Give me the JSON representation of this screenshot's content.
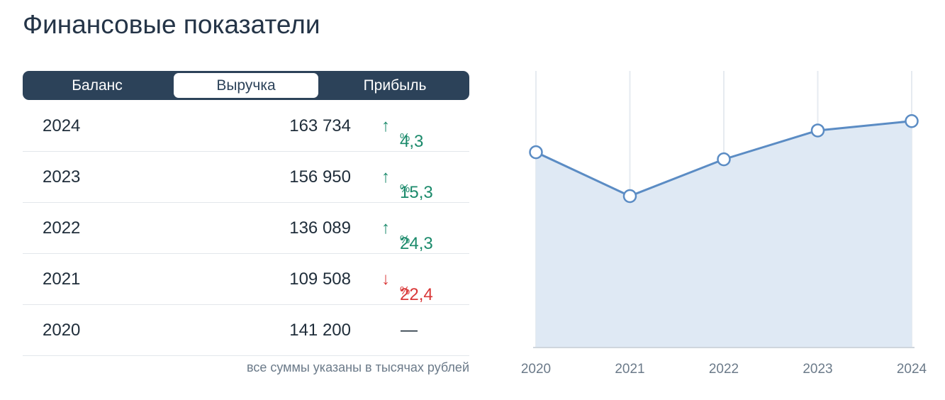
{
  "header": {
    "title": "Финансовые показатели"
  },
  "tabs": {
    "items": [
      "Баланс",
      "Выручка",
      "Прибыль"
    ],
    "active": 1
  },
  "table": {
    "rows": [
      {
        "year": "2024",
        "value": "163 734",
        "change": "4,3",
        "unit": "%",
        "trend": "up"
      },
      {
        "year": "2023",
        "value": "156 950",
        "change": "15,3",
        "unit": "%",
        "trend": "up"
      },
      {
        "year": "2022",
        "value": "136 089",
        "change": "24,3",
        "unit": "%",
        "trend": "up"
      },
      {
        "year": "2021",
        "value": "109 508",
        "change": "22,4",
        "unit": "%",
        "trend": "down"
      },
      {
        "year": "2020",
        "value": "141 200",
        "change": "—"
      }
    ]
  },
  "note": "все суммы указаны в тысячах рублей",
  "chart_data": {
    "type": "line",
    "categories": [
      "2020",
      "2021",
      "2022",
      "2023",
      "2024"
    ],
    "values": [
      141200,
      109508,
      136089,
      156950,
      163734
    ],
    "ylim": [
      0,
      200000
    ],
    "color": "#5b8cc4",
    "fill": "#dfe9f4",
    "grid": true
  }
}
